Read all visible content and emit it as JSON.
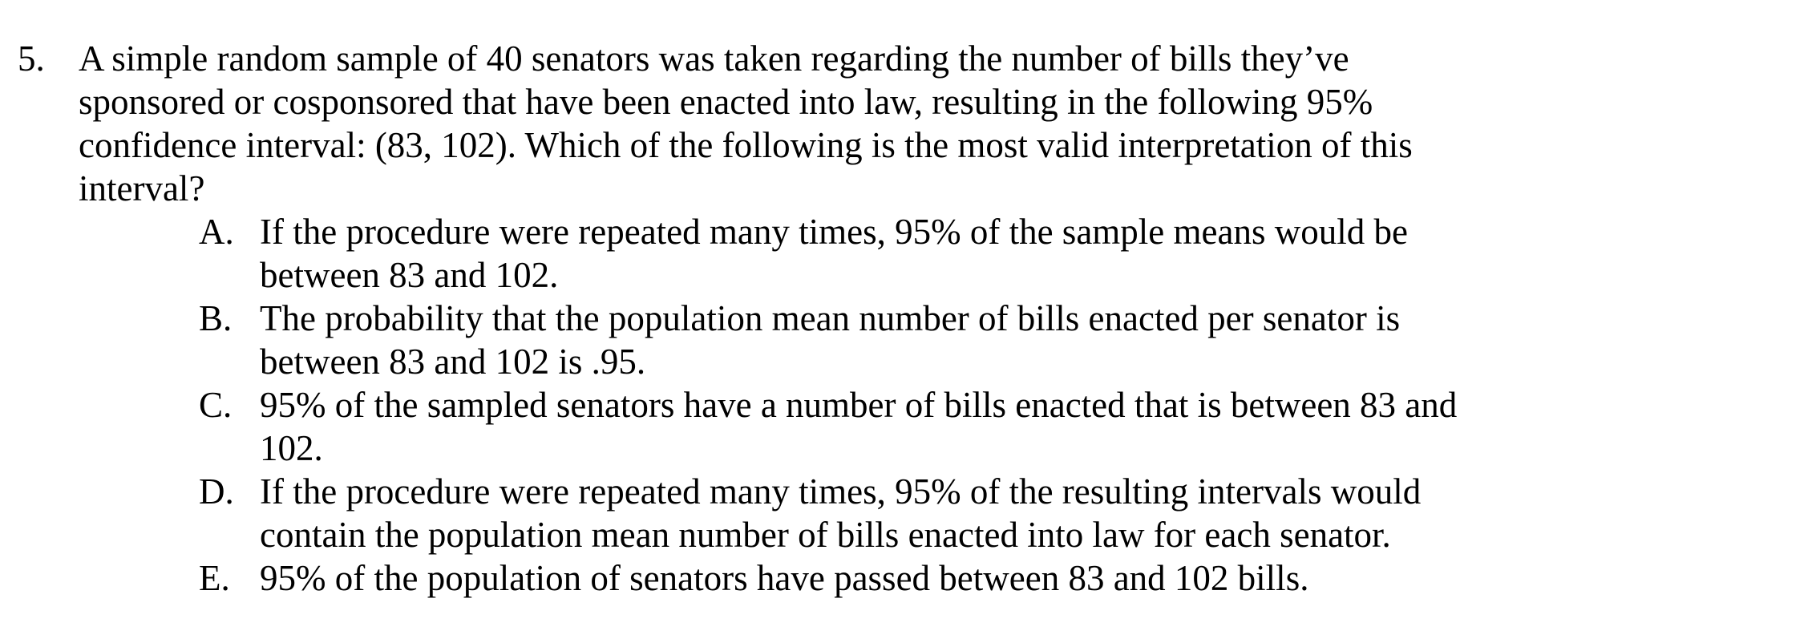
{
  "question": {
    "number": "5.",
    "lines": [
      "A simple random sample of 40 senators was taken regarding the number of bills they’ve",
      "sponsored or cosponsored that have been enacted into law, resulting in the following 95%",
      "confidence interval: (83, 102). Which of the following is the most valid interpretation of this",
      "interval?"
    ]
  },
  "choices": [
    {
      "letter": "A.",
      "lines": [
        "If the procedure were repeated many times, 95% of the sample means would be",
        "between 83 and 102."
      ]
    },
    {
      "letter": "B.",
      "lines": [
        "The probability that the population mean number of bills enacted per senator is",
        "between 83 and 102 is .95."
      ]
    },
    {
      "letter": "C.",
      "lines": [
        "95% of the sampled senators have a number of bills enacted that is between 83 and",
        "102."
      ]
    },
    {
      "letter": "D.",
      "lines": [
        "If the procedure were repeated many times, 95% of the resulting intervals would",
        "contain the population mean number of bills enacted into law for each senator."
      ]
    },
    {
      "letter": "E.",
      "lines": [
        "95% of the population of senators have passed between 83 and 102 bills."
      ]
    }
  ]
}
